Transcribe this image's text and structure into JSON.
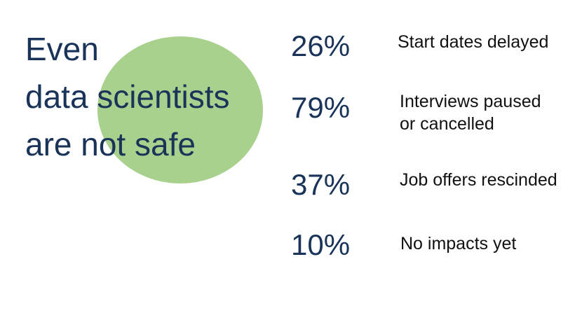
{
  "title_lines": [
    "Even",
    "data scientists",
    "are not safe"
  ],
  "colors": {
    "navy": "#1a3358",
    "accent_circle": "#a9d18e"
  },
  "stats": [
    {
      "value": "26%",
      "label": "Start dates delayed"
    },
    {
      "value": "79%",
      "label": "Interviews paused\nor cancelled"
    },
    {
      "value": "37%",
      "label": "Job offers rescinded"
    },
    {
      "value": "10%",
      "label": "No impacts yet"
    }
  ]
}
